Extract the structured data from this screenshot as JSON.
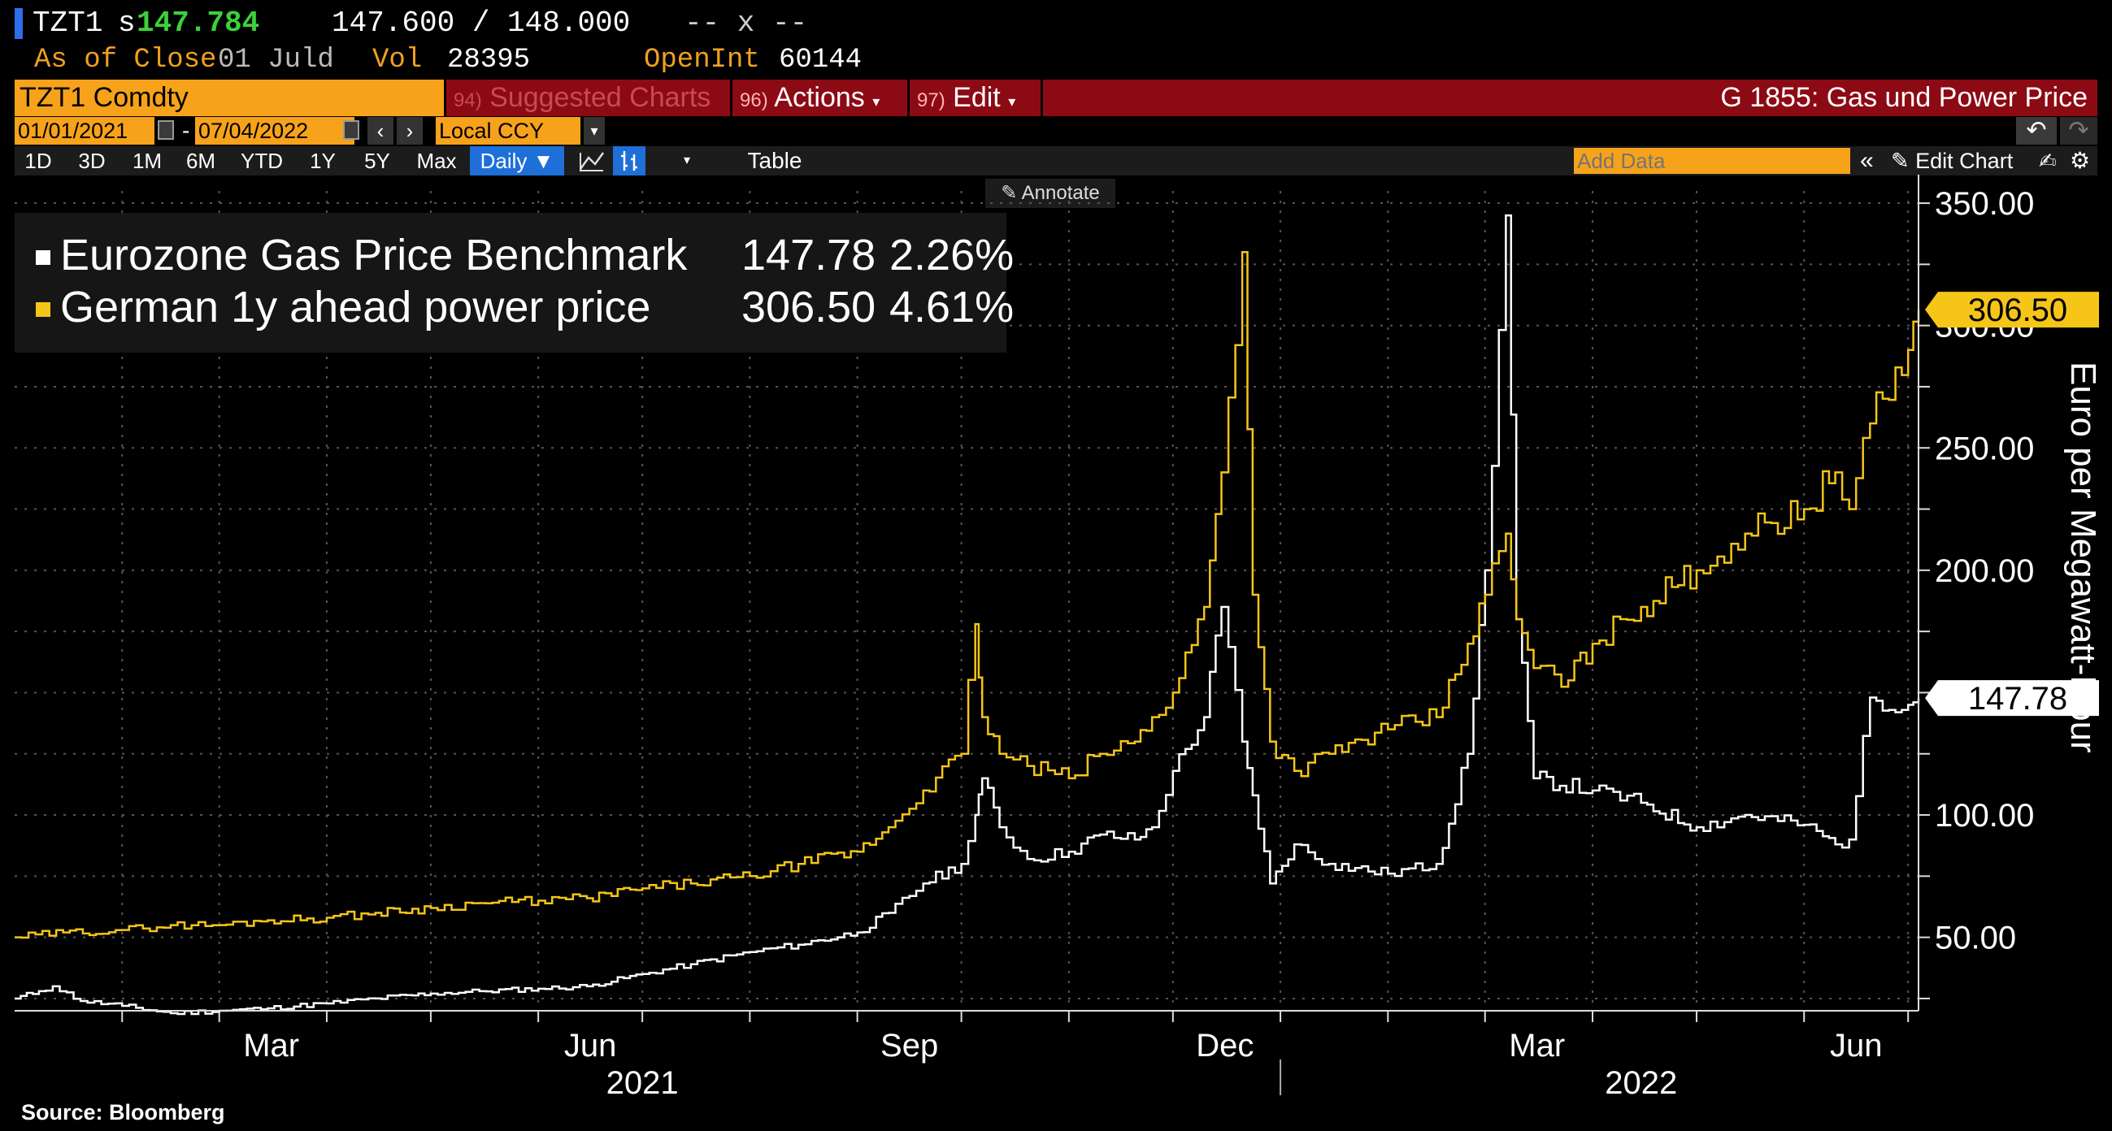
{
  "header": {
    "ticker": "TZT1",
    "last_prefix": "s",
    "last_price": "147.784",
    "bid_ask": "147.600 / 148.000",
    "spread": "-- x --",
    "asof_label": "As of Close",
    "asof_value": "01 Juld",
    "vol_label": "Vol",
    "vol_value": "28395",
    "openint_label": "OpenInt",
    "openint_value": "60144"
  },
  "menu": {
    "security": "TZT1 Comdty",
    "suggested_num": "94)",
    "suggested_label": "Suggested Charts",
    "actions_num": "96)",
    "actions_label": "Actions",
    "edit_num": "97)",
    "edit_label": "Edit",
    "function_title": "G 1855: Gas und Power Price"
  },
  "controls": {
    "start_date": "01/01/2021",
    "date_sep": "-",
    "end_date": "07/04/2022",
    "currency": "Local CCY",
    "ranges": [
      "1D",
      "3D",
      "1M",
      "6M",
      "YTD",
      "1Y",
      "5Y",
      "Max"
    ],
    "frequency": "Daily ▼",
    "table_label": "Table",
    "add_data_placeholder": "Add Data",
    "edit_chart_label": "Edit Chart",
    "annotate_label": "Annotate"
  },
  "legend": [
    {
      "name": "Eurozone Gas Price Benchmark",
      "value": "147.78",
      "change": "2.26%",
      "color": "#ffffff"
    },
    {
      "name": "German 1y ahead power price",
      "value": "306.50",
      "change": "4.61%",
      "color": "#f5c518"
    }
  ],
  "chart_data": {
    "type": "line",
    "title": "G 1855: Gas und Power Price",
    "ylabel": "Euro per Megawatt-Hour",
    "xlabel": "",
    "ylim": [
      20,
      355
    ],
    "y_ticks": [
      "50.00",
      "100.00",
      "150.00",
      "200.00",
      "250.00",
      "300.00",
      "350.00"
    ],
    "x_ticks": [
      "Mar",
      "Jun",
      "Sep",
      "Dec",
      "Mar",
      "Jun"
    ],
    "x_years": [
      "2021",
      "2022"
    ],
    "x_range": [
      "2021-01-01",
      "2022-07-04"
    ],
    "last_value_labels": {
      "gas": "147.78",
      "power": "306.50"
    },
    "series": [
      {
        "name": "Eurozone Gas Price Benchmark",
        "color": "#ffffff",
        "dates": [
          "2021-01-01",
          "2021-01-08",
          "2021-01-12",
          "2021-01-20",
          "2021-02-01",
          "2021-02-15",
          "2021-03-01",
          "2021-03-15",
          "2021-04-01",
          "2021-04-15",
          "2021-05-01",
          "2021-05-15",
          "2021-06-01",
          "2021-06-15",
          "2021-07-01",
          "2021-07-15",
          "2021-08-01",
          "2021-08-15",
          "2021-09-01",
          "2021-09-10",
          "2021-09-20",
          "2021-10-01",
          "2021-10-05",
          "2021-10-07",
          "2021-10-12",
          "2021-10-20",
          "2021-11-01",
          "2021-11-10",
          "2021-11-20",
          "2021-11-25",
          "2021-12-01",
          "2021-12-10",
          "2021-12-15",
          "2021-12-21",
          "2021-12-24",
          "2021-12-29",
          "2022-01-05",
          "2022-01-15",
          "2022-02-01",
          "2022-02-15",
          "2022-02-24",
          "2022-03-01",
          "2022-03-07",
          "2022-03-10",
          "2022-03-15",
          "2022-04-01",
          "2022-04-15",
          "2022-05-01",
          "2022-05-15",
          "2022-06-01",
          "2022-06-10",
          "2022-06-14",
          "2022-06-20",
          "2022-07-01",
          "2022-07-04"
        ],
        "values": [
          25,
          28,
          30,
          24,
          22,
          19,
          20,
          21,
          23,
          25,
          27,
          28,
          29,
          30,
          35,
          39,
          44,
          47,
          52,
          60,
          72,
          80,
          100,
          115,
          95,
          82,
          85,
          92,
          90,
          95,
          118,
          140,
          185,
          130,
          108,
          72,
          88,
          80,
          76,
          80,
          125,
          200,
          345,
          180,
          115,
          110,
          105,
          95,
          100,
          96,
          88,
          90,
          148,
          145,
          147.78
        ]
      },
      {
        "name": "German 1y ahead power price",
        "color": "#f5c518",
        "dates": [
          "2021-01-01",
          "2021-01-15",
          "2021-02-01",
          "2021-02-15",
          "2021-03-01",
          "2021-03-15",
          "2021-04-01",
          "2021-04-15",
          "2021-05-01",
          "2021-05-15",
          "2021-06-01",
          "2021-06-15",
          "2021-07-01",
          "2021-07-15",
          "2021-08-01",
          "2021-08-15",
          "2021-09-01",
          "2021-09-10",
          "2021-09-20",
          "2021-10-01",
          "2021-10-05",
          "2021-10-07",
          "2021-10-12",
          "2021-10-20",
          "2021-11-01",
          "2021-11-10",
          "2021-11-20",
          "2021-11-25",
          "2021-12-01",
          "2021-12-10",
          "2021-12-15",
          "2021-12-21",
          "2021-12-24",
          "2021-12-29",
          "2022-01-05",
          "2022-01-15",
          "2022-02-01",
          "2022-02-15",
          "2022-02-24",
          "2022-03-01",
          "2022-03-07",
          "2022-03-10",
          "2022-03-15",
          "2022-03-25",
          "2022-04-01",
          "2022-04-15",
          "2022-05-01",
          "2022-05-15",
          "2022-06-01",
          "2022-06-10",
          "2022-06-14",
          "2022-06-20",
          "2022-07-01",
          "2022-07-04"
        ],
        "values": [
          50,
          52,
          53,
          55,
          55,
          57,
          58,
          60,
          62,
          64,
          65,
          66,
          70,
          72,
          75,
          80,
          85,
          95,
          110,
          125,
          178,
          140,
          125,
          120,
          115,
          125,
          130,
          140,
          150,
          185,
          240,
          330,
          190,
          130,
          118,
          125,
          135,
          140,
          170,
          190,
          215,
          180,
          160,
          155,
          170,
          185,
          200,
          215,
          225,
          240,
          225,
          260,
          290,
          306.5
        ]
      }
    ]
  },
  "footer": {
    "source": "Source: Bloomberg"
  }
}
